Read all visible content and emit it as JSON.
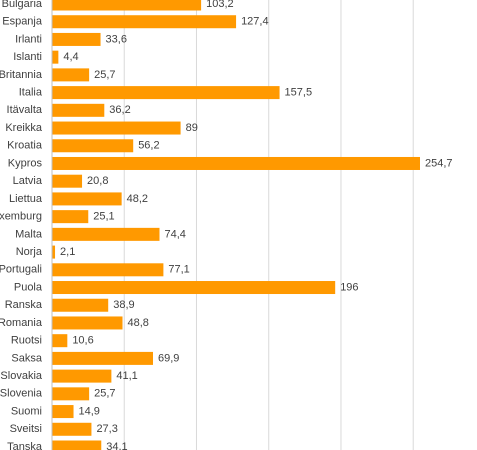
{
  "chart_data": {
    "type": "barh",
    "categories": [
      "Bulgaria",
      "Espanja",
      "Irlanti",
      "Islanti",
      "Iso-Britannia",
      "Italia",
      "Itävalta",
      "Kreikka",
      "Kroatia",
      "Kypros",
      "Latvia",
      "Liettua",
      "Luxemburg",
      "Malta",
      "Norja",
      "Portugali",
      "Puola",
      "Ranska",
      "Romania",
      "Ruotsi",
      "Saksa",
      "Slovakia",
      "Slovenia",
      "Suomi",
      "Sveitsi",
      "Tanska"
    ],
    "values": [
      103.2,
      127.4,
      33.6,
      4.4,
      25.7,
      157.5,
      36.2,
      89,
      56.2,
      254.7,
      20.8,
      48.2,
      25.1,
      74.4,
      2.1,
      77.1,
      196,
      38.9,
      48.8,
      10.6,
      69.9,
      41.1,
      25.7,
      14.9,
      27.3,
      34.1
    ],
    "value_labels": [
      "103,2",
      "127,4",
      "33,6",
      "4,4",
      "25,7",
      "157,5",
      "36,2",
      "89",
      "56,2",
      "254,7",
      "20,8",
      "48,2",
      "25,1",
      "74,4",
      "2,1",
      "77,1",
      "196",
      "38,9",
      "48,8",
      "10,6",
      "69,9",
      "41,1",
      "25,7",
      "14,9",
      "27,3",
      "34,1"
    ],
    "color": "#ff9900",
    "xlim": [
      0,
      300
    ],
    "xticks": [
      0,
      50,
      100,
      150,
      200,
      250,
      300
    ],
    "grid": true
  }
}
